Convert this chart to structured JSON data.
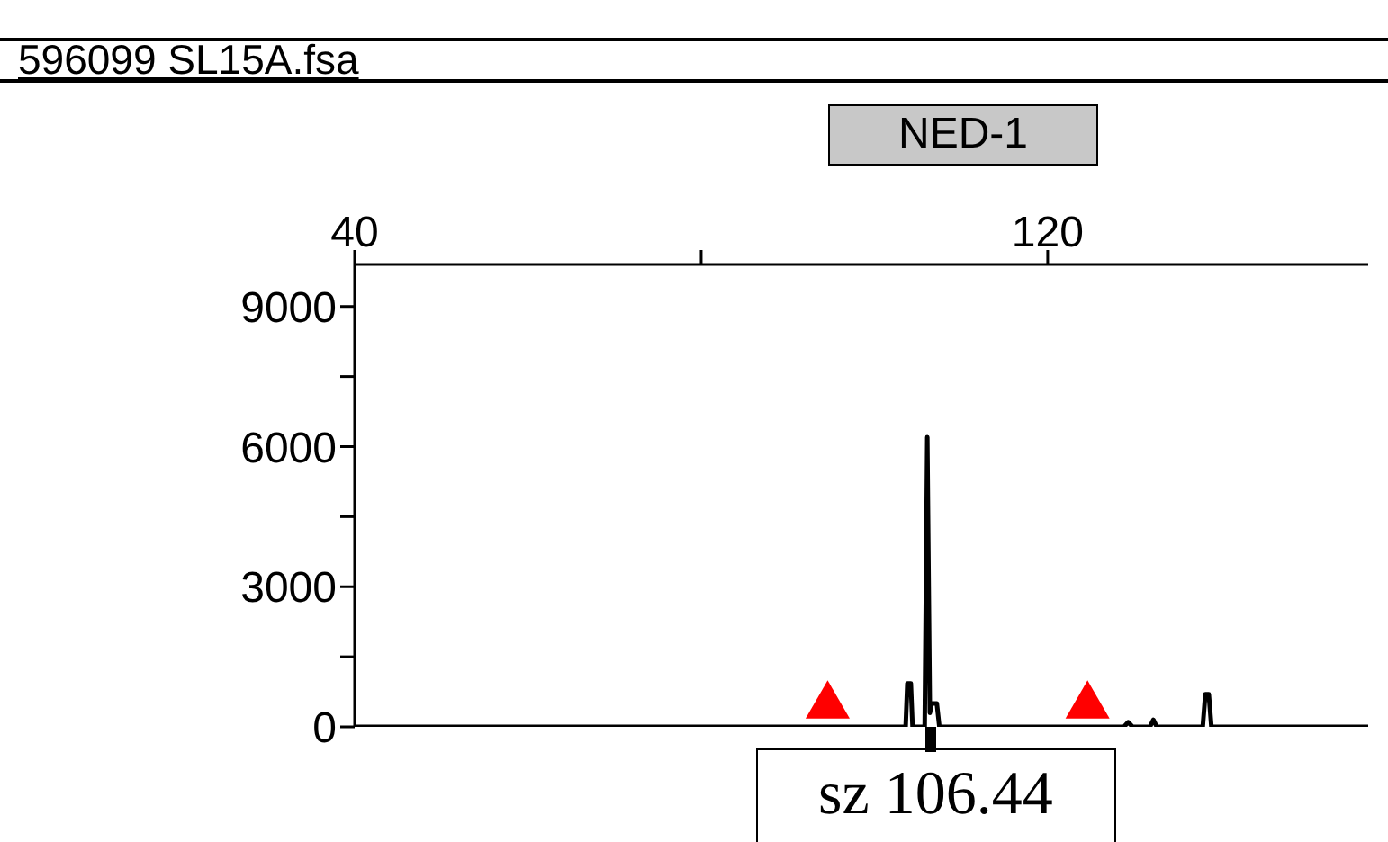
{
  "chart_data": {
    "type": "line",
    "title": "596099 SL15A.fsa",
    "subtitle": "NED-1",
    "annotations": [
      {
        "text": "sz 106.44",
        "x": 106.44,
        "y": 0
      }
    ],
    "xlim": [
      40,
      157
    ],
    "xticks": [
      40,
      {
        "value": 80,
        "label": null
      },
      120
    ],
    "ylim": [
      0,
      9900
    ],
    "yticks": [
      0,
      {
        "value": 1500,
        "label": null
      },
      3000,
      {
        "value": 4500,
        "label": null
      },
      6000,
      {
        "value": 7500,
        "label": null
      },
      9000
    ],
    "grid": false,
    "marker": "none",
    "line_style": "solid",
    "series": [
      {
        "type": "line",
        "color": "#000000",
        "x": [
          40,
          103.6,
          103.8,
          104.2,
          104.4,
          105.8,
          106.1,
          106.4,
          106.6,
          107.2,
          107.5,
          128.8,
          129.3,
          129.8,
          131.8,
          132.2,
          132.6,
          137.9,
          138.2,
          138.6,
          138.9,
          157
        ],
        "values": [
          0,
          0,
          930,
          930,
          0,
          0,
          6200,
          300,
          500,
          500,
          0,
          0,
          100,
          0,
          0,
          150,
          0,
          0,
          700,
          700,
          0,
          0
        ]
      },
      {
        "type": "scatter",
        "color": "#ff0000",
        "marker": "triangle",
        "x": [
          94.6,
          124.6
        ],
        "values": [
          450,
          450
        ]
      }
    ]
  }
}
